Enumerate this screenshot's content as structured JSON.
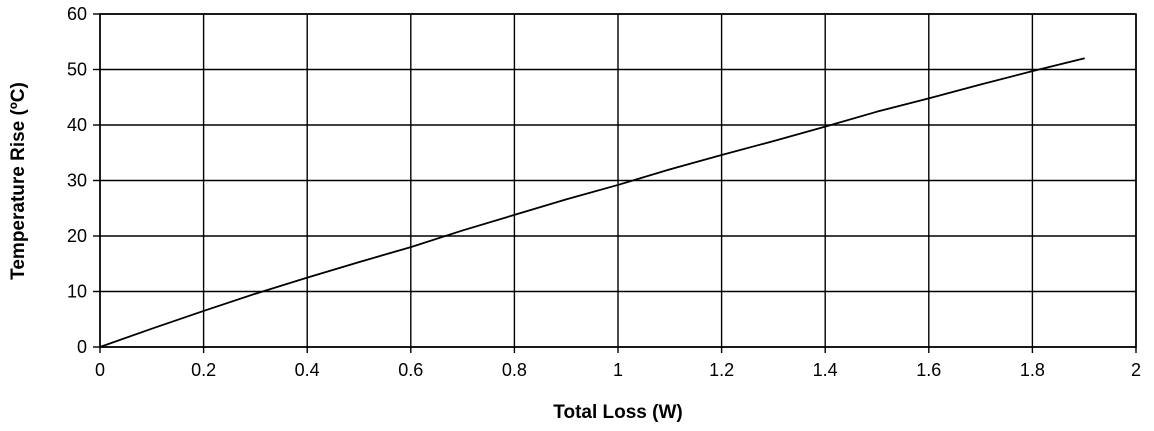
{
  "chart_data": {
    "type": "line",
    "title": "",
    "xlabel": "Total Loss (W)",
    "ylabel": "Temperature Rise (ºC)",
    "xlim": [
      0,
      2
    ],
    "ylim": [
      0,
      60
    ],
    "x_ticks": [
      0,
      0.2,
      0.4,
      0.6,
      0.8,
      1,
      1.2,
      1.4,
      1.6,
      1.8,
      2
    ],
    "x_tick_labels": [
      "0",
      "0.2",
      "0.4",
      "0.6",
      "0.8",
      "1",
      "1.2",
      "1.4",
      "1.6",
      "1.8",
      "2"
    ],
    "y_ticks": [
      0,
      10,
      20,
      30,
      40,
      50,
      60
    ],
    "y_tick_labels": [
      "0",
      "10",
      "20",
      "30",
      "40",
      "50",
      "60"
    ],
    "grid": true,
    "legend": "none",
    "series": [
      {
        "color": "#000000",
        "x": [
          0,
          0.1,
          0.2,
          0.3,
          0.4,
          0.5,
          0.6,
          0.7,
          0.8,
          0.9,
          1.0,
          1.1,
          1.2,
          1.3,
          1.4,
          1.5,
          1.6,
          1.7,
          1.8,
          1.9
        ],
        "y": [
          0,
          3.3,
          6.5,
          9.6,
          12.5,
          15.3,
          18.0,
          21.0,
          23.8,
          26.6,
          29.2,
          32.0,
          34.6,
          37.1,
          39.7,
          42.4,
          44.8,
          47.3,
          49.7,
          52.0
        ]
      }
    ]
  }
}
